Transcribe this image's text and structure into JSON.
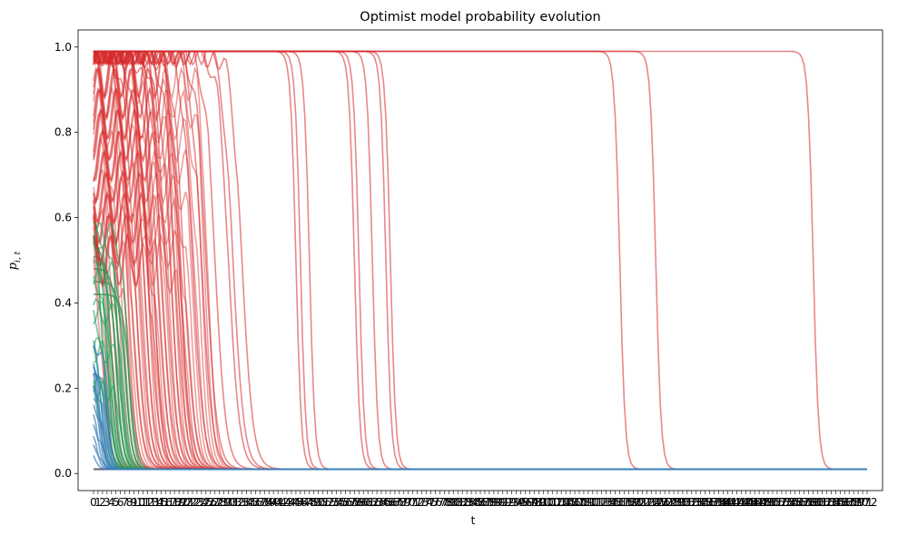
{
  "chart_data": {
    "type": "line",
    "title": "Optimist model probability evolution",
    "xlabel": "t",
    "ylabel": "p",
    "ylabel_sub": "i, t",
    "xlim": [
      0,
      172
    ],
    "ylim": [
      -0.04,
      1.04
    ],
    "yticks": [
      0.0,
      0.2,
      0.4,
      0.6,
      0.8,
      1.0
    ],
    "ytick_labels": [
      "0.0",
      "0.2",
      "0.4",
      "0.6",
      "0.8",
      "1.0"
    ],
    "xtick_labels_first": "0",
    "xtick_labels_last": "172",
    "grid": false,
    "legend": "none",
    "colors": {
      "red": "#d62728",
      "green": "#1ea35a",
      "blue": "#3a7fb8",
      "floor": "#6b5d70",
      "axis": "#000000"
    },
    "series": [
      {
        "group": "red",
        "start": 0.99,
        "end": 0.01,
        "drop_t": [
          160,
          125,
          117,
          66,
          65,
          62,
          58,
          59,
          48,
          46,
          45,
          33,
          31,
          30,
          27,
          25,
          24,
          22,
          20,
          19,
          18,
          17,
          16,
          15,
          14,
          13,
          12,
          11,
          10,
          9,
          8
        ]
      },
      {
        "group": "green",
        "start": 0.6,
        "end": 0.01,
        "drop_t": [
          2,
          3,
          4,
          5,
          6,
          7,
          8
        ]
      },
      {
        "group": "blue",
        "start": 0.3,
        "end": 0.01,
        "drop_t": [
          1,
          2,
          3
        ]
      }
    ]
  }
}
